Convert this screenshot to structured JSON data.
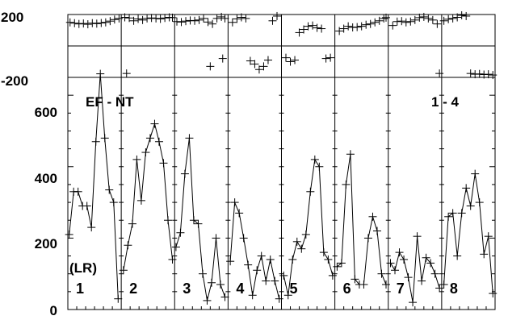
{
  "chart_data": {
    "type": "line",
    "title": "",
    "annotations": {
      "left": "EF - NT",
      "right": "1 - 4",
      "unit": "(LR)"
    },
    "top_strip": {
      "type": "scatter",
      "ylim": [
        -200,
        200
      ],
      "yticks": [
        "200",
        "-200"
      ],
      "zero_line": true,
      "series": [
        {
          "panel": "1",
          "x": [
            0.5,
            1.5,
            2.5,
            3.5,
            4.5,
            5.5,
            6.5,
            7.5,
            8.5,
            9.5,
            10.5,
            11.5
          ],
          "y": [
            150,
            145,
            140,
            143,
            138,
            145,
            142,
            146,
            150,
            158,
            168,
            175
          ]
        },
        {
          "panel": "2",
          "x": [
            0.8,
            1.8,
            2.8,
            3.8,
            4.8,
            5.8,
            6.8,
            7.8,
            8.8,
            9.8,
            10.8,
            11.5,
            1.2
          ],
          "y": [
            182,
            178,
            160,
            172,
            165,
            175,
            178,
            175,
            172,
            178,
            182,
            180,
            -175
          ]
        },
        {
          "panel": "3",
          "x": [
            0.5,
            1.5,
            2.5,
            3.5,
            4.5,
            5.5,
            6.5,
            7.5,
            8.5,
            9.5,
            10.5,
            11.3,
            10.8,
            8.0
          ],
          "y": [
            155,
            152,
            158,
            162,
            160,
            165,
            175,
            152,
            140,
            175,
            185,
            175,
            -80,
            -130
          ]
        },
        {
          "panel": "4",
          "x": [
            1.0,
            2.0,
            3.0,
            4.0,
            5.0,
            6.0,
            7.0,
            8.0,
            9.0,
            10.0,
            11.0
          ],
          "y": [
            150,
            172,
            182,
            175,
            -95,
            -115,
            -150,
            -130,
            -90,
            160,
            190
          ]
        },
        {
          "panel": "5",
          "x": [
            1.0,
            2.0,
            3.0,
            4.0,
            5.0,
            6.0,
            7.0,
            8.0,
            9.0,
            10.0,
            11.0
          ],
          "y": [
            -75,
            -100,
            -90,
            85,
            105,
            125,
            130,
            115,
            110,
            -80,
            -75
          ]
        },
        {
          "panel": "6",
          "x": [
            1.0,
            2.0,
            3.0,
            4.0,
            5.0,
            6.0,
            7.0,
            8.0,
            9.0,
            10.0,
            11.0,
            11.5
          ],
          "y": [
            95,
            110,
            125,
            118,
            120,
            125,
            135,
            140,
            150,
            160,
            175,
            180
          ]
        },
        {
          "panel": "7",
          "x": [
            1.0,
            2.0,
            3.0,
            4.0,
            5.0,
            6.0,
            7.0,
            8.0,
            9.0,
            10.0,
            11.0,
            11.5
          ],
          "y": [
            130,
            155,
            158,
            150,
            155,
            165,
            180,
            185,
            175,
            165,
            140,
            -175
          ]
        },
        {
          "panel": "8",
          "x": [
            0.5,
            1.5,
            2.5,
            3.5,
            4.5,
            5.5,
            6.5,
            7.5,
            8.5,
            9.5,
            10.5,
            11.5
          ],
          "y": [
            160,
            170,
            175,
            182,
            195,
            190,
            -175,
            -180,
            -178,
            -182,
            -180,
            -185
          ]
        }
      ]
    },
    "main": {
      "type": "line",
      "ylim": [
        0,
        650
      ],
      "yticks": [
        "0",
        "200",
        "400",
        "600"
      ],
      "panels": [
        {
          "label": "1",
          "x": [
            0.3,
            1.3,
            2.3,
            3.3,
            4.3,
            5.3,
            6.3,
            7.3,
            8.3,
            9.3,
            10.3,
            11.3
          ],
          "y": [
            210,
            330,
            330,
            290,
            290,
            230,
            470,
            660,
            480,
            335,
            300,
            30
          ]
        },
        {
          "label": "2",
          "x": [
            0.5,
            1.5,
            2.5,
            3.5,
            4.5,
            5.5,
            6.5,
            7.5,
            8.5,
            9.5,
            10.5,
            11.5
          ],
          "y": [
            110,
            180,
            240,
            420,
            305,
            440,
            480,
            520,
            470,
            410,
            250,
            140
          ]
        },
        {
          "label": "3",
          "x": [
            0.3,
            1.3,
            2.3,
            3.3,
            4.3,
            5.3,
            6.3,
            7.3,
            8.3,
            9.3,
            10.3,
            11.3
          ],
          "y": [
            175,
            215,
            380,
            480,
            250,
            240,
            100,
            25,
            75,
            200,
            70,
            35
          ]
        },
        {
          "label": "4",
          "x": [
            0.5,
            1.5,
            2.5,
            3.5,
            4.5,
            5.5,
            6.5,
            7.5,
            8.5,
            9.5,
            10.5,
            11.5
          ],
          "y": [
            135,
            300,
            270,
            200,
            125,
            40,
            110,
            150,
            80,
            140,
            80,
            30
          ]
        },
        {
          "label": "5",
          "x": [
            0.5,
            1.5,
            2.5,
            3.5,
            4.5,
            5.5,
            6.5,
            7.5,
            8.5,
            9.5,
            10.5,
            11.5
          ],
          "y": [
            95,
            40,
            140,
            190,
            170,
            210,
            330,
            420,
            400,
            160,
            140,
            95
          ]
        },
        {
          "label": "6",
          "x": [
            0.5,
            1.5,
            2.5,
            3.5,
            4.5,
            5.5,
            6.5,
            7.5,
            8.5,
            9.5,
            10.5,
            11.5
          ],
          "y": [
            120,
            130,
            350,
            435,
            85,
            70,
            70,
            200,
            260,
            220,
            100,
            70
          ]
        },
        {
          "label": "7",
          "x": [
            0.5,
            1.5,
            2.5,
            3.5,
            4.5,
            5.5,
            6.5,
            7.5,
            8.5,
            9.5,
            10.5,
            11.5
          ],
          "y": [
            130,
            110,
            160,
            140,
            90,
            20,
            205,
            80,
            145,
            130,
            100,
            60
          ]
        },
        {
          "label": "8",
          "x": [
            0.5,
            1.5,
            2.5,
            3.5,
            4.5,
            5.5,
            6.5,
            7.5,
            8.5,
            9.5,
            10.5,
            11.5
          ],
          "y": [
            70,
            260,
            270,
            150,
            270,
            340,
            290,
            380,
            300,
            155,
            205,
            45
          ]
        }
      ]
    }
  }
}
